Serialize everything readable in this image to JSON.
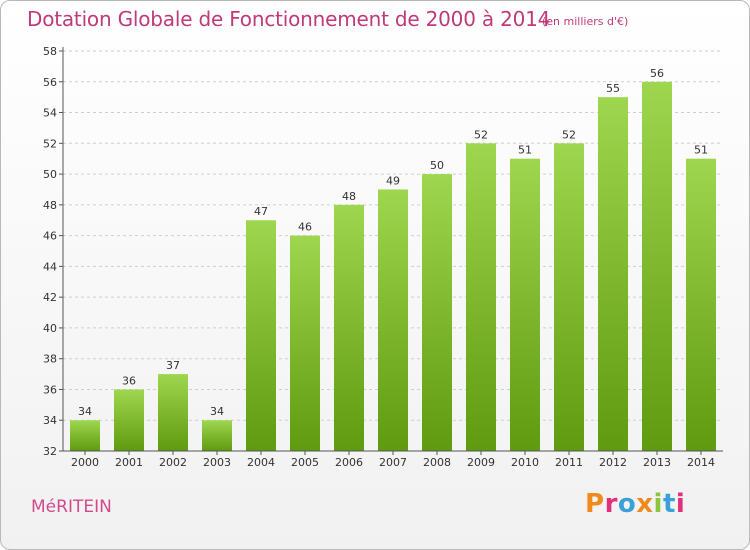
{
  "header": {
    "title": "Dotation Globale de Fonctionnement de 2000 à 2014",
    "unit_note": "(en milliers d'€)"
  },
  "footer": {
    "commune": "MéRITEIN",
    "logo_text": "Proxiti"
  },
  "colors": {
    "accent": "#c03a7a",
    "bar_top": "#9fd64f",
    "bar_bottom": "#5f9a10",
    "logo": [
      "#f08a1c",
      "#e0307a",
      "#3aa0d8",
      "#f08a1c",
      "#8cc63f",
      "#3aa0d8",
      "#e0307a"
    ]
  },
  "chart_data": {
    "type": "bar",
    "title": "Dotation Globale de Fonctionnement de 2000 à 2014",
    "subtitle": "(en milliers d'€)",
    "xlabel": "",
    "ylabel": "",
    "categories": [
      "2000",
      "2001",
      "2002",
      "2003",
      "2004",
      "2005",
      "2006",
      "2007",
      "2008",
      "2009",
      "2010",
      "2011",
      "2012",
      "2013",
      "2014"
    ],
    "values": [
      34,
      36,
      37,
      34,
      47,
      46,
      48,
      49,
      50,
      52,
      51,
      52,
      55,
      56,
      51
    ],
    "ylim": [
      32,
      58
    ],
    "yticks": [
      32,
      34,
      36,
      38,
      40,
      42,
      44,
      46,
      48,
      50,
      52,
      54,
      56,
      58
    ],
    "grid": true,
    "legend": "none"
  }
}
